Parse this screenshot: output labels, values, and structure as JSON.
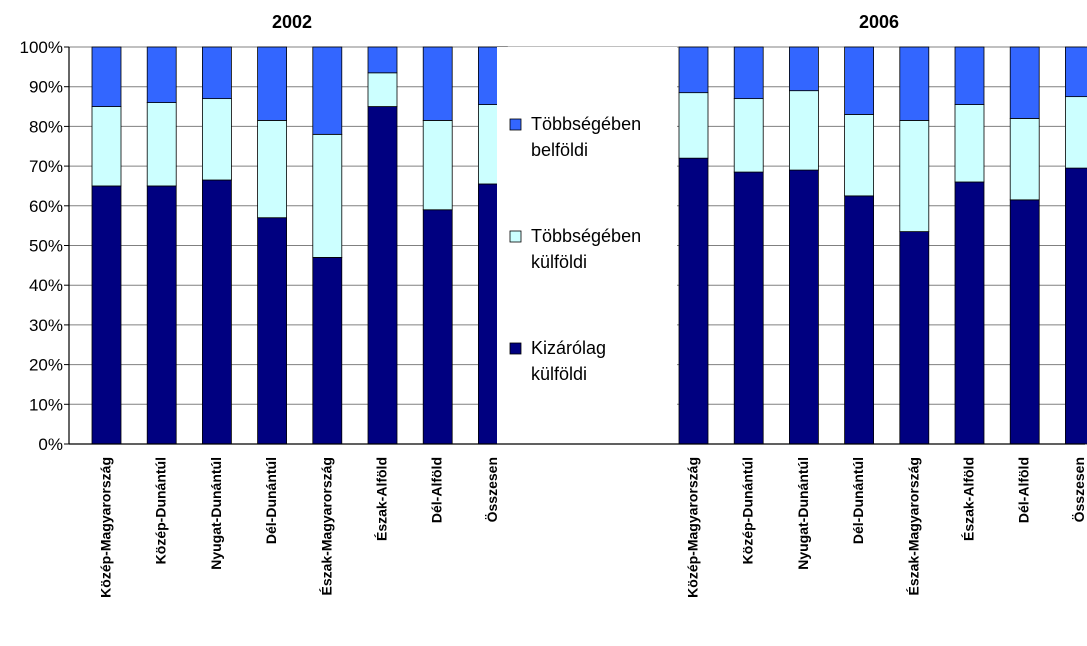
{
  "chart_data": {
    "type": "bar",
    "stacked": true,
    "percent_stacked": true,
    "grid": true,
    "legend_position": "center",
    "ylim": [
      0,
      100
    ],
    "yticks": [
      "0%",
      "10%",
      "20%",
      "30%",
      "40%",
      "50%",
      "60%",
      "70%",
      "80%",
      "90%",
      "100%"
    ],
    "legend": [
      {
        "lines": [
          "Többségében",
          "belföldi"
        ],
        "color": "#3366ff"
      },
      {
        "lines": [
          "Többségében",
          "külföldi"
        ],
        "color": "#ccffff"
      },
      {
        "lines": [
          "Kizárólag",
          "külföldi"
        ],
        "color": "#000080"
      }
    ],
    "panels": [
      {
        "title": "2002",
        "categories": [
          "Közép-Magyarország",
          "Közép-Dunántúl",
          "Nyugat-Dunántúl",
          "Dél-Dunántúl",
          "Észak-Magyarország",
          "Észak-Alföld",
          "Dél-Alföld",
          "Összesen"
        ],
        "series": [
          {
            "name": "Kizárólag külföldi",
            "color": "#000080",
            "values": [
              65,
              65,
              66.5,
              57,
              47,
              85,
              59,
              65.5
            ]
          },
          {
            "name": "Többségében külföldi",
            "color": "#ccffff",
            "values": [
              20,
              21,
              20.5,
              24.5,
              31,
              8.5,
              22.5,
              20
            ]
          },
          {
            "name": "Többségében belföldi",
            "color": "#3366ff",
            "values": [
              15,
              14,
              13,
              18.5,
              22,
              6.5,
              18.5,
              14.5
            ]
          }
        ]
      },
      {
        "title": "2006",
        "categories": [
          "Közép-Magyarország",
          "Közép-Dunántúl",
          "Nyugat-Dunántúl",
          "Dél-Dunántúl",
          "Észak-Magyarország",
          "Észak-Alföld",
          "Dél-Alföld",
          "Összesen"
        ],
        "series": [
          {
            "name": "Kizárólag külföldi",
            "color": "#000080",
            "values": [
              72,
              68.5,
              69,
              62.5,
              53.5,
              66,
              61.5,
              69.5
            ]
          },
          {
            "name": "Többségében külföldi",
            "color": "#ccffff",
            "values": [
              16.5,
              18.5,
              20,
              20.5,
              28,
              19.5,
              20.5,
              18
            ]
          },
          {
            "name": "Többségében belföldi",
            "color": "#3366ff",
            "values": [
              11.5,
              13,
              11,
              17,
              18.5,
              14.5,
              18,
              12.5
            ]
          }
        ]
      }
    ]
  }
}
